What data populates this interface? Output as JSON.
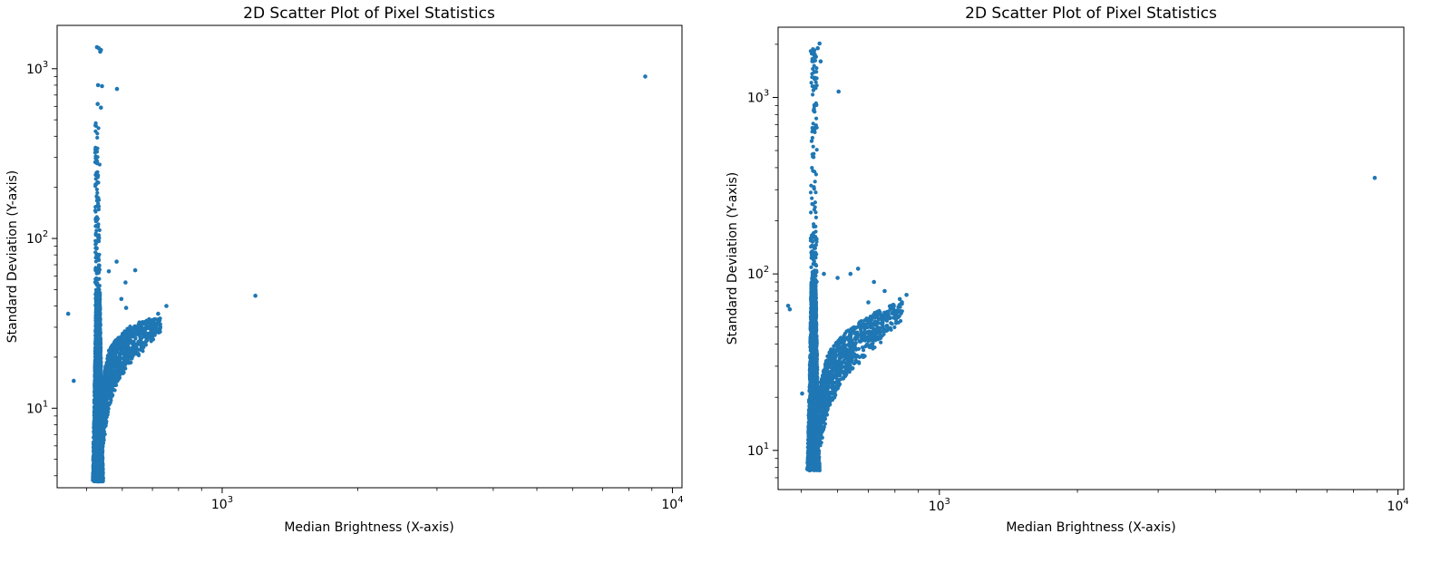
{
  "colors": {
    "marker": "#1f77b4",
    "axis": "#000000",
    "background": "#ffffff"
  },
  "chart_data": [
    {
      "type": "scatter",
      "title": "2D Scatter Plot of Pixel Statistics",
      "xlabel": "Median Brightness (X-axis)",
      "ylabel": "Standard Deviation (Y-axis)",
      "xscale": "log",
      "yscale": "log",
      "xlim": [
        430,
        10500
      ],
      "ylim": [
        3.4,
        1800
      ],
      "grid": false,
      "legend": "none",
      "x_major_ticks": [
        {
          "value": 1000,
          "base": "10",
          "exp": "3"
        },
        {
          "value": 10000,
          "base": "10",
          "exp": "4"
        }
      ],
      "y_major_ticks": [
        {
          "value": 10,
          "base": "10",
          "exp": "1"
        },
        {
          "value": 100,
          "base": "10",
          "exp": "2"
        },
        {
          "value": 1000,
          "base": "10",
          "exp": "3"
        }
      ],
      "core_cluster": {
        "x_min": 518,
        "x_max": 548,
        "y_min": 3.7,
        "y_max": 48
      },
      "wing_cluster": [
        {
          "x": 540,
          "y_lo": 5,
          "y_hi": 14
        },
        {
          "x": 560,
          "y_lo": 10,
          "y_hi": 22
        },
        {
          "x": 585,
          "y_lo": 14,
          "y_hi": 26
        },
        {
          "x": 620,
          "y_lo": 18,
          "y_hi": 30
        },
        {
          "x": 660,
          "y_lo": 21,
          "y_hi": 33
        },
        {
          "x": 700,
          "y_lo": 25,
          "y_hi": 34
        },
        {
          "x": 730,
          "y_lo": 28,
          "y_hi": 34
        }
      ],
      "spike": {
        "x_min": 522,
        "x_max": 540,
        "y_min": 40,
        "y_max": 480
      },
      "points": [
        [
          455,
          36
        ],
        [
          468,
          14.5
        ],
        [
          527,
          1340
        ],
        [
          538,
          1290
        ],
        [
          532,
          1320
        ],
        [
          536,
          1260
        ],
        [
          530,
          800
        ],
        [
          541,
          790
        ],
        [
          529,
          620
        ],
        [
          538,
          590
        ],
        [
          584,
          760
        ],
        [
          8700,
          900
        ],
        [
          1185,
          46
        ],
        [
          583,
          73
        ],
        [
          610,
          55
        ],
        [
          641,
          65
        ],
        [
          752,
          40
        ],
        [
          655,
          32
        ],
        [
          690,
          33
        ],
        [
          721,
          36
        ],
        [
          560,
          64
        ],
        [
          597,
          44
        ],
        [
          674,
          29
        ],
        [
          612,
          39
        ]
      ]
    },
    {
      "type": "scatter",
      "title": "2D Scatter Plot of Pixel Statistics",
      "xlabel": "Median Brightness (X-axis)",
      "ylabel": "Standard Deviation (Y-axis)",
      "xscale": "log",
      "yscale": "log",
      "xlim": [
        445,
        10300
      ],
      "ylim": [
        6.0,
        2500
      ],
      "grid": false,
      "legend": "none",
      "x_major_ticks": [
        {
          "value": 1000,
          "base": "10",
          "exp": "3"
        },
        {
          "value": 10000,
          "base": "10",
          "exp": "4"
        }
      ],
      "y_major_ticks": [
        {
          "value": 10,
          "base": "10",
          "exp": "1"
        },
        {
          "value": 100,
          "base": "10",
          "exp": "2"
        },
        {
          "value": 1000,
          "base": "10",
          "exp": "3"
        }
      ],
      "core_cluster": {
        "x_min": 518,
        "x_max": 552,
        "y_min": 7.7,
        "y_max": 90
      },
      "wing_cluster": [
        {
          "x": 545,
          "y_lo": 9,
          "y_hi": 22
        },
        {
          "x": 570,
          "y_lo": 16,
          "y_hi": 35
        },
        {
          "x": 610,
          "y_lo": 24,
          "y_hi": 45
        },
        {
          "x": 660,
          "y_lo": 30,
          "y_hi": 52
        },
        {
          "x": 720,
          "y_lo": 38,
          "y_hi": 60
        },
        {
          "x": 780,
          "y_lo": 45,
          "y_hi": 66
        },
        {
          "x": 830,
          "y_lo": 55,
          "y_hi": 70
        }
      ],
      "spike": {
        "x_min": 524,
        "x_max": 548,
        "y_min": 90,
        "y_max": 1900
      },
      "points": [
        [
          468,
          66
        ],
        [
          472,
          63
        ],
        [
          502,
          21
        ],
        [
          548,
          2020
        ],
        [
          543,
          1900
        ],
        [
          538,
          1700
        ],
        [
          551,
          1600
        ],
        [
          603,
          1080
        ],
        [
          537,
          1130
        ],
        [
          8900,
          350
        ],
        [
          560,
          100
        ],
        [
          600,
          95
        ],
        [
          640,
          100
        ],
        [
          665,
          107
        ],
        [
          720,
          90
        ],
        [
          760,
          80
        ],
        [
          820,
          72
        ],
        [
          848,
          76
        ],
        [
          810,
          62
        ],
        [
          760,
          58
        ],
        [
          700,
          69
        ],
        [
          690,
          50
        ],
        [
          740,
          44
        ],
        [
          640,
          40
        ]
      ]
    }
  ]
}
